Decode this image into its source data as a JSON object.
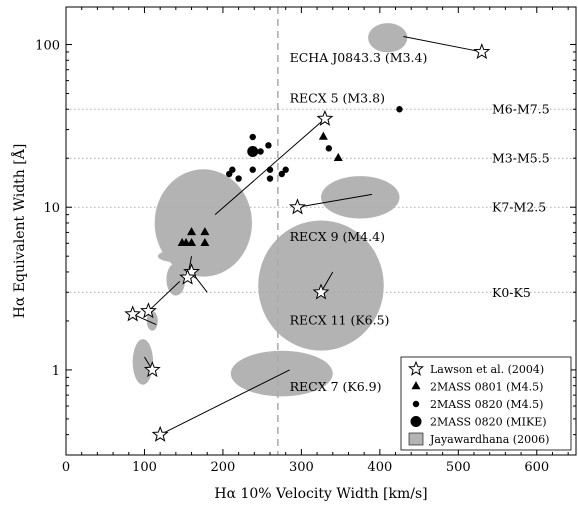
{
  "chart_data": {
    "type": "scatter",
    "xlabel": "Hα 10% Velocity Width [km/s]",
    "ylabel": "Hα Equivalent Width [Å]",
    "xlim": [
      0,
      650
    ],
    "ylim": [
      0.3,
      170
    ],
    "yscale": "log",
    "x_ticks": [
      0,
      100,
      200,
      300,
      400,
      500,
      600
    ],
    "y_ticks": [
      1,
      10,
      100
    ],
    "x_tick_labels": [
      "0",
      "100",
      "200",
      "300",
      "400",
      "500",
      "600"
    ],
    "y_tick_labels": [
      "1",
      "10",
      "100"
    ],
    "grid": false,
    "legend_position": "bottom-right",
    "vertical_reference_line": {
      "x": 270,
      "style": "dashed"
    },
    "spectral_type_lines": [
      {
        "label": "M6-M7.5",
        "y": 40
      },
      {
        "label": "M3-M5.5",
        "y": 20
      },
      {
        "label": "K7-M2.5",
        "y": 10
      },
      {
        "label": "K0-K5",
        "y": 3
      }
    ],
    "series": [
      {
        "name": "Lawson et al. (2004)",
        "marker": "star",
        "points": [
          {
            "x": 530,
            "y": 90
          },
          {
            "x": 330,
            "y": 35
          },
          {
            "x": 295,
            "y": 10
          },
          {
            "x": 325,
            "y": 3
          },
          {
            "x": 160,
            "y": 4
          },
          {
            "x": 155,
            "y": 3.7
          },
          {
            "x": 105,
            "y": 2.3
          },
          {
            "x": 85,
            "y": 2.2
          },
          {
            "x": 110,
            "y": 1
          },
          {
            "x": 120,
            "y": 0.4
          }
        ]
      },
      {
        "name": "2MASS 0801 (M4.5)",
        "marker": "triangle",
        "points": [
          {
            "x": 148,
            "y": 6
          },
          {
            "x": 153,
            "y": 6
          },
          {
            "x": 160,
            "y": 7
          },
          {
            "x": 160,
            "y": 6
          },
          {
            "x": 177,
            "y": 7
          },
          {
            "x": 177,
            "y": 6
          },
          {
            "x": 328,
            "y": 27
          },
          {
            "x": 347,
            "y": 20
          }
        ]
      },
      {
        "name": "2MASS 0820 (M4.5)",
        "marker": "small-circle",
        "points": [
          {
            "x": 425,
            "y": 40
          },
          {
            "x": 238,
            "y": 27
          },
          {
            "x": 248,
            "y": 22
          },
          {
            "x": 258,
            "y": 24
          },
          {
            "x": 335,
            "y": 23
          },
          {
            "x": 238,
            "y": 17
          },
          {
            "x": 260,
            "y": 17
          },
          {
            "x": 280,
            "y": 17
          },
          {
            "x": 212,
            "y": 17
          },
          {
            "x": 275,
            "y": 16
          },
          {
            "x": 208,
            "y": 16
          },
          {
            "x": 220,
            "y": 15
          },
          {
            "x": 260,
            "y": 15
          }
        ]
      },
      {
        "name": "2MASS 0820 (MIKE)",
        "marker": "large-circle",
        "points": [
          {
            "x": 238,
            "y": 22
          }
        ]
      },
      {
        "name": "Jayawardhana (2006)",
        "marker": "ellipse",
        "regions": [
          {
            "cx": 410,
            "cy": 110,
            "rx": 25,
            "ry": 0.09
          },
          {
            "cx": 375,
            "cy": 11.5,
            "rx": 50,
            "ry": 0.13
          },
          {
            "cx": 325,
            "cy": 3.3,
            "rx": 80,
            "ry": 0.4
          },
          {
            "cx": 175,
            "cy": 8,
            "rx": 62,
            "ry": 0.33
          },
          {
            "cx": 145,
            "cy": 5,
            "rx": 28,
            "ry": 0.04
          },
          {
            "cx": 140,
            "cy": 3.6,
            "rx": 12,
            "ry": 0.1
          },
          {
            "cx": 110,
            "cy": 2.0,
            "rx": 7,
            "ry": 0.06
          },
          {
            "cx": 98,
            "cy": 1.12,
            "rx": 13,
            "ry": 0.14
          },
          {
            "cx": 275,
            "cy": 0.95,
            "rx": 65,
            "ry": 0.14
          }
        ]
      }
    ],
    "connectors": [
      [
        [
          530,
          90
        ],
        [
          430,
          112
        ]
      ],
      [
        [
          330,
          35
        ],
        [
          190,
          9
        ]
      ],
      [
        [
          295,
          10
        ],
        [
          390,
          12
        ]
      ],
      [
        [
          325,
          3
        ],
        [
          340,
          4
        ]
      ],
      [
        [
          160,
          4
        ],
        [
          180,
          3
        ]
      ],
      [
        [
          155,
          3.7
        ],
        [
          160,
          5
        ]
      ],
      [
        [
          105,
          2.3
        ],
        [
          145,
          3.5
        ]
      ],
      [
        [
          85,
          2.2
        ],
        [
          115,
          1.9
        ]
      ],
      [
        [
          110,
          1
        ],
        [
          100,
          1.2
        ]
      ],
      [
        [
          120,
          0.4
        ],
        [
          285,
          1
        ]
      ]
    ],
    "annotations": [
      {
        "text": "ECHA J0843.3 (M3.4)",
        "x": 285,
        "y": 78
      },
      {
        "text": "RECX 5 (M3.8)",
        "x": 285,
        "y": 44
      },
      {
        "text": "RECX 9 (M4.4)",
        "x": 285,
        "y": 6.2
      },
      {
        "text": "RECX 11 (K6.5)",
        "x": 285,
        "y": 1.9
      },
      {
        "text": "RECX 7 (K6.9)",
        "x": 285,
        "y": 0.74
      }
    ]
  }
}
